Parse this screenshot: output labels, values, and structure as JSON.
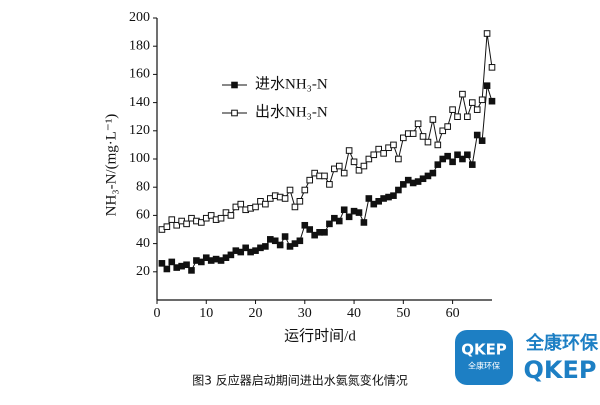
{
  "chart_data": {
    "type": "line",
    "ylabel": "NH₃-N/(mg·L⁻¹)",
    "xlabel": "运行时间/d",
    "caption": "图3 反应器启动期间进出水氨氮变化情况",
    "xlim": [
      0,
      68
    ],
    "xticks": [
      0,
      10,
      20,
      30,
      40,
      50,
      60
    ],
    "ylim": [
      0,
      200
    ],
    "yticks": [
      20,
      40,
      60,
      80,
      100,
      120,
      140,
      160,
      180,
      200
    ],
    "x": [
      1,
      2,
      3,
      4,
      5,
      6,
      7,
      8,
      9,
      10,
      11,
      12,
      13,
      14,
      15,
      16,
      17,
      18,
      19,
      20,
      21,
      22,
      23,
      24,
      25,
      26,
      27,
      28,
      29,
      30,
      31,
      32,
      33,
      34,
      35,
      36,
      37,
      38,
      39,
      40,
      41,
      42,
      43,
      44,
      45,
      46,
      47,
      48,
      49,
      50,
      51,
      52,
      53,
      54,
      55,
      56,
      57,
      58,
      59,
      60,
      61,
      62,
      63,
      64,
      65,
      66,
      67,
      68
    ],
    "series": [
      {
        "name": "进水NH₃-N",
        "color": "#111111",
        "marker": "filled-square",
        "values": [
          26,
          22,
          27,
          23,
          24,
          25,
          21,
          28,
          27,
          30,
          28,
          29,
          28,
          30,
          32,
          35,
          34,
          37,
          34,
          35,
          37,
          38,
          43,
          42,
          39,
          45,
          38,
          40,
          42,
          53,
          50,
          46,
          48,
          48,
          54,
          58,
          56,
          64,
          59,
          63,
          62,
          55,
          72,
          68,
          70,
          72,
          73,
          74,
          78,
          82,
          85,
          83,
          84,
          86,
          88,
          90,
          96,
          100,
          102,
          98,
          103,
          100,
          103,
          96,
          117,
          113,
          152,
          141
        ]
      },
      {
        "name": "出水NH₃-N",
        "color": "#111111",
        "marker": "open-square",
        "values": [
          50,
          52,
          57,
          53,
          56,
          54,
          58,
          56,
          55,
          58,
          60,
          57,
          58,
          62,
          60,
          66,
          68,
          64,
          65,
          66,
          70,
          68,
          72,
          74,
          73,
          72,
          78,
          66,
          70,
          78,
          85,
          90,
          88,
          88,
          82,
          93,
          95,
          90,
          106,
          98,
          92,
          95,
          100,
          103,
          107,
          104,
          108,
          110,
          100,
          115,
          118,
          118,
          125,
          116,
          112,
          128,
          110,
          120,
          123,
          135,
          130,
          146,
          130,
          140,
          135,
          142,
          189,
          165
        ]
      }
    ]
  },
  "watermark": {
    "badge": "QKEP",
    "badge_sub": "全康环保",
    "name_cn": "全康环保",
    "name_en": "QKEP"
  }
}
